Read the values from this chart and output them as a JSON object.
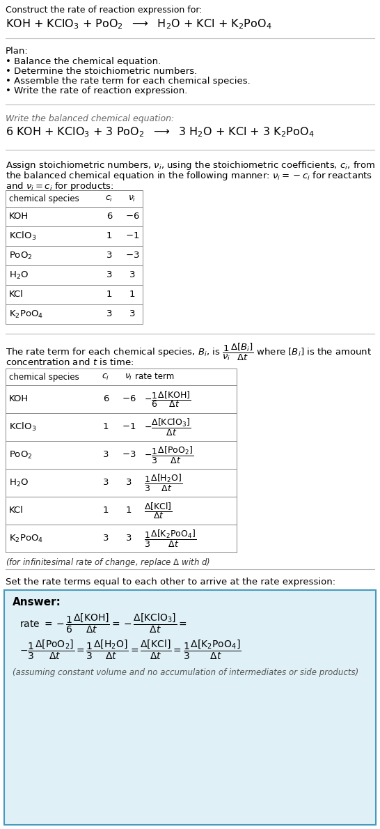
{
  "title_line": "Construct the rate of reaction expression for:",
  "bg_color": "#ffffff",
  "text_color": "#000000",
  "table_border_color": "#888888",
  "separator_color": "#bbbbbb",
  "answer_box_color": "#dff0f7",
  "answer_box_border": "#4a9abf"
}
